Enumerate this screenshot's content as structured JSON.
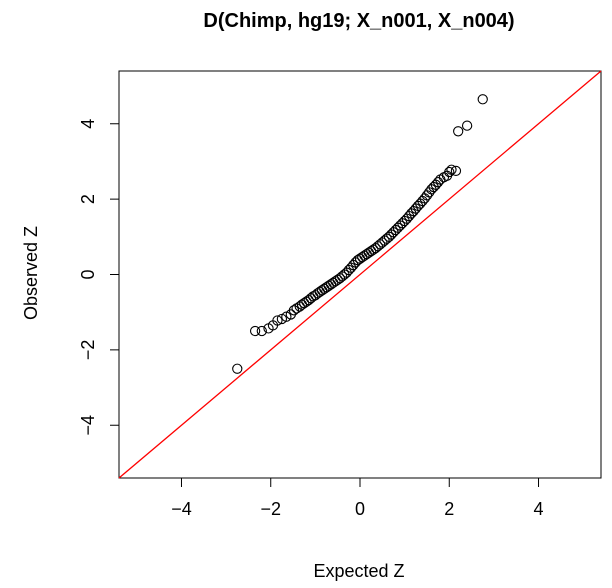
{
  "chart_data": {
    "type": "scatter",
    "title": "D(Chimp, hg19; X_n001, X_n004)",
    "xlabel": "Expected Z",
    "ylabel": "Observed Z",
    "xlim": [
      -5.4,
      5.4
    ],
    "ylim": [
      -5.4,
      5.4
    ],
    "xticks": [
      -4,
      -2,
      0,
      2,
      4
    ],
    "yticks": [
      -4,
      -2,
      0,
      2,
      4
    ],
    "xtick_labels": [
      "−4",
      "−2",
      "0",
      "2",
      "4"
    ],
    "ytick_labels": [
      "−4",
      "−2",
      "0",
      "2",
      "4"
    ],
    "grid": false,
    "reference_line": {
      "slope": 1,
      "intercept": 0,
      "color": "#ff0000"
    },
    "point_color": "#000000",
    "series": [
      {
        "points": [
          [
            -2.75,
            -2.5
          ],
          [
            -2.35,
            -1.5
          ],
          [
            -2.2,
            -1.5
          ],
          [
            -2.05,
            -1.43
          ],
          [
            -1.95,
            -1.35
          ],
          [
            -1.85,
            -1.22
          ],
          [
            -1.75,
            -1.18
          ],
          [
            -1.65,
            -1.12
          ],
          [
            -1.55,
            -1.06
          ],
          [
            -1.48,
            -0.95
          ],
          [
            -1.42,
            -0.9
          ],
          [
            -1.35,
            -0.85
          ],
          [
            -1.3,
            -0.8
          ],
          [
            -1.25,
            -0.76
          ],
          [
            -1.2,
            -0.72
          ],
          [
            -1.15,
            -0.68
          ],
          [
            -1.1,
            -0.63
          ],
          [
            -1.05,
            -0.58
          ],
          [
            -1.0,
            -0.55
          ],
          [
            -0.95,
            -0.5
          ],
          [
            -0.9,
            -0.46
          ],
          [
            -0.85,
            -0.42
          ],
          [
            -0.8,
            -0.38
          ],
          [
            -0.75,
            -0.34
          ],
          [
            -0.7,
            -0.3
          ],
          [
            -0.65,
            -0.26
          ],
          [
            -0.6,
            -0.22
          ],
          [
            -0.55,
            -0.18
          ],
          [
            -0.5,
            -0.14
          ],
          [
            -0.45,
            -0.1
          ],
          [
            -0.4,
            -0.05
          ],
          [
            -0.35,
            0.0
          ],
          [
            -0.3,
            0.05
          ],
          [
            -0.25,
            0.12
          ],
          [
            -0.2,
            0.18
          ],
          [
            -0.15,
            0.25
          ],
          [
            -0.1,
            0.32
          ],
          [
            -0.05,
            0.38
          ],
          [
            0.0,
            0.42
          ],
          [
            0.05,
            0.46
          ],
          [
            0.1,
            0.5
          ],
          [
            0.15,
            0.54
          ],
          [
            0.2,
            0.58
          ],
          [
            0.25,
            0.62
          ],
          [
            0.3,
            0.66
          ],
          [
            0.35,
            0.7
          ],
          [
            0.4,
            0.75
          ],
          [
            0.45,
            0.8
          ],
          [
            0.5,
            0.85
          ],
          [
            0.55,
            0.9
          ],
          [
            0.6,
            0.95
          ],
          [
            0.65,
            1.0
          ],
          [
            0.7,
            1.06
          ],
          [
            0.75,
            1.12
          ],
          [
            0.8,
            1.18
          ],
          [
            0.85,
            1.24
          ],
          [
            0.9,
            1.3
          ],
          [
            0.95,
            1.36
          ],
          [
            1.0,
            1.42
          ],
          [
            1.05,
            1.48
          ],
          [
            1.1,
            1.55
          ],
          [
            1.15,
            1.62
          ],
          [
            1.2,
            1.68
          ],
          [
            1.25,
            1.75
          ],
          [
            1.3,
            1.82
          ],
          [
            1.35,
            1.88
          ],
          [
            1.4,
            1.95
          ],
          [
            1.45,
            2.02
          ],
          [
            1.5,
            2.1
          ],
          [
            1.55,
            2.18
          ],
          [
            1.6,
            2.26
          ],
          [
            1.65,
            2.32
          ],
          [
            1.7,
            2.38
          ],
          [
            1.75,
            2.45
          ],
          [
            1.8,
            2.52
          ],
          [
            1.88,
            2.58
          ],
          [
            1.95,
            2.62
          ],
          [
            2.0,
            2.72
          ],
          [
            2.05,
            2.78
          ],
          [
            2.15,
            2.75
          ],
          [
            2.2,
            3.8
          ],
          [
            2.4,
            3.95
          ],
          [
            2.75,
            4.65
          ]
        ]
      }
    ]
  }
}
